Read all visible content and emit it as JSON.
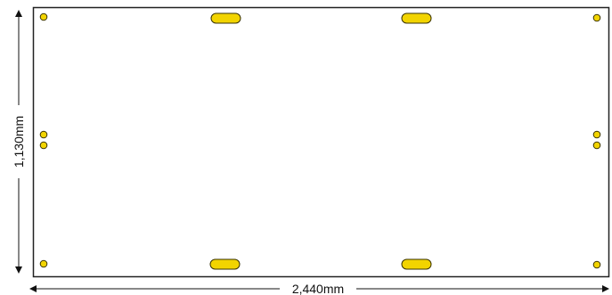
{
  "diagram": {
    "width_label": "2,440mm",
    "height_label": "1,130mm",
    "colors": {
      "panel_outline": "#222222",
      "hole_fill": "#f2d400",
      "hole_stroke": "#3a3300",
      "dimension_line": "#111111"
    }
  }
}
